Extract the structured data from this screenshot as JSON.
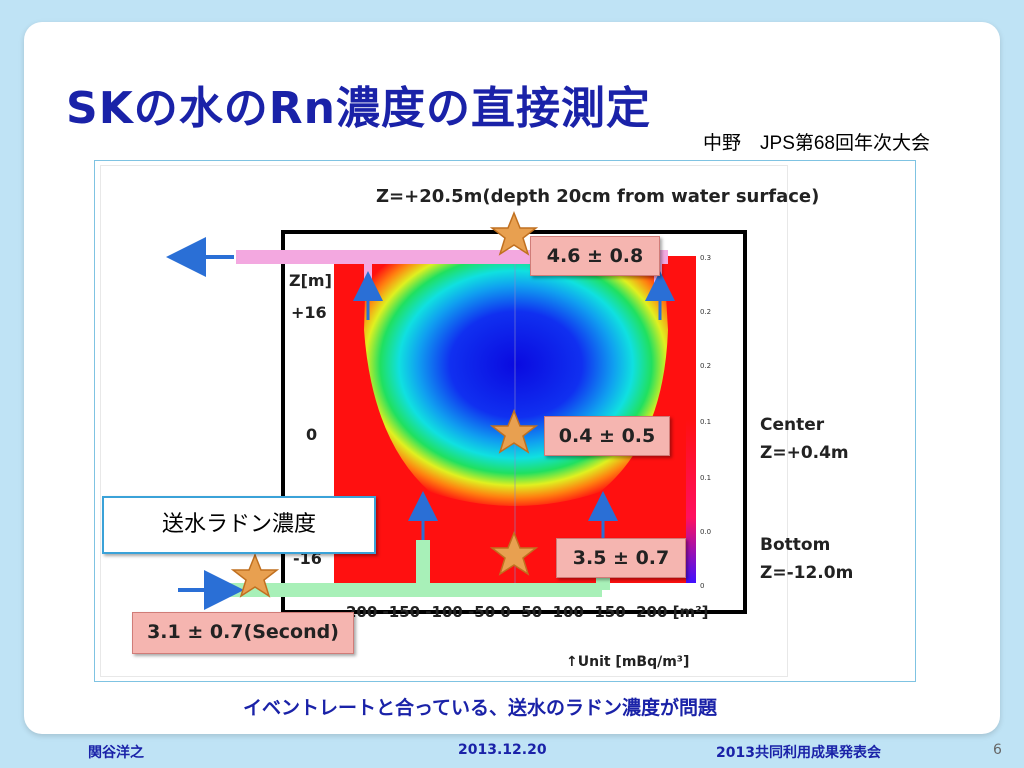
{
  "title": "SKの水のRn濃度の直接測定",
  "subtitle": "中野　JPS第68回年次大会",
  "figure": {
    "top_label": "Z=+20.5m(depth 20cm from water surface)",
    "z_axis": {
      "label": "Z[m]",
      "top": "+16",
      "mid": "0",
      "bottom": "-16"
    },
    "r_axis_ticks": "200 -150 -100 -50 0  50  100  150  200 [m²]",
    "unit": "↑Unit [mBq/m³]",
    "colorbar_ticks": [
      "0.3",
      "0.2",
      "0.2",
      "0.1",
      "0.1",
      "0.0",
      "0"
    ],
    "center": {
      "label": "Center",
      "z": "Z=+0.4m"
    },
    "bottom": {
      "label": "Bottom",
      "z": "Z=-12.0m"
    },
    "measurements": {
      "top": "4.6 ± 0.8",
      "center": "0.4 ± 0.5",
      "bottom": "3.5 ± 0.7",
      "feed": "3.1 ± 0.7(Second)"
    },
    "feed_label": "送水ラドン濃度"
  },
  "caption": "イベントレートと合っている、送水のラドン濃度が問題",
  "footer": {
    "author": "関谷洋之",
    "date": "2013.12.20",
    "event": "2013共同利用成果発表会",
    "page": "6"
  },
  "colors": {
    "title_blue": "#1a22a8",
    "label_pink": "#f5b5b0",
    "star_orange": "#e8a050",
    "outlet_pink": "#f3a8e0",
    "inlet_green": "#a8f0b8",
    "arrow_blue": "#2a6fd6",
    "map_red": "#ff1010"
  }
}
